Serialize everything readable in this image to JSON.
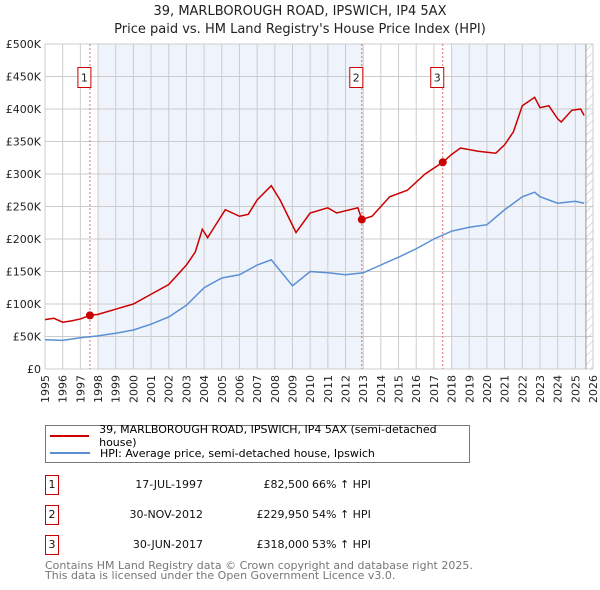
{
  "title_line1": "39, MARLBOROUGH ROAD, IPSWICH, IP4 5AX",
  "title_line2": "Price paid vs. HM Land Registry's House Price Index (HPI)",
  "chart_data": {
    "type": "line",
    "title": "39, MARLBOROUGH ROAD, IPSWICH, IP4 5AX — Price paid vs. HM Land Registry's House Price Index (HPI)",
    "xlim": [
      1995,
      2026
    ],
    "ylim": [
      0,
      500000
    ],
    "x_ticks": [
      "1995",
      "1996",
      "1997",
      "1998",
      "1999",
      "2000",
      "2001",
      "2002",
      "2003",
      "2004",
      "2005",
      "2006",
      "2007",
      "2008",
      "2009",
      "2010",
      "2011",
      "2012",
      "2013",
      "2014",
      "2015",
      "2016",
      "2017",
      "2018",
      "2019",
      "2020",
      "2021",
      "2022",
      "2023",
      "2024",
      "2025",
      "2026"
    ],
    "y_ticks": [
      {
        "v": 0,
        "label": "£0"
      },
      {
        "v": 50000,
        "label": "£50K"
      },
      {
        "v": 100000,
        "label": "£100K"
      },
      {
        "v": 150000,
        "label": "£150K"
      },
      {
        "v": 200000,
        "label": "£200K"
      },
      {
        "v": 250000,
        "label": "£250K"
      },
      {
        "v": 300000,
        "label": "£300K"
      },
      {
        "v": 350000,
        "label": "£350K"
      },
      {
        "v": 400000,
        "label": "£400K"
      },
      {
        "v": 450000,
        "label": "£450K"
      },
      {
        "v": 500000,
        "label": "£500K"
      }
    ],
    "grid": true,
    "legend_placement": "below",
    "series": [
      {
        "name": "39, MARLBOROUGH ROAD, IPSWICH, IP4 5AX (semi-detached house)",
        "color": "#cc0000",
        "x": [
          1995,
          1995.5,
          1996,
          1996.5,
          1997,
          1997.54,
          1998,
          1999,
          2000,
          2001,
          2002,
          2003,
          2003.5,
          2003.9,
          2004.2,
          2004.5,
          2005.2,
          2006,
          2006.5,
          2007,
          2007.8,
          2008.3,
          2009.2,
          2010,
          2011,
          2011.5,
          2012.7,
          2012.92,
          2013.5,
          2014,
          2014.5,
          2015.5,
          2016.5,
          2017.5,
          2018,
          2018.5,
          2019.5,
          2020.5,
          2021,
          2021.5,
          2022,
          2022.7,
          2023,
          2023.5,
          2024,
          2024.2,
          2024.8,
          2025.3,
          2025.5
        ],
        "y": [
          76000,
          78000,
          72000,
          74000,
          77000,
          82500,
          84000,
          92000,
          100000,
          115000,
          130000,
          160000,
          180000,
          215000,
          202000,
          215000,
          245000,
          235000,
          238000,
          260000,
          282000,
          260000,
          210000,
          240000,
          248000,
          240000,
          248000,
          229950,
          235000,
          250000,
          265000,
          275000,
          300000,
          318000,
          330000,
          340000,
          335000,
          332000,
          345000,
          365000,
          405000,
          418000,
          402000,
          405000,
          385000,
          380000,
          398000,
          400000,
          390000
        ]
      },
      {
        "name": "HPI: Average price, semi-detached house, Ipswich",
        "color": "#5b8fd4",
        "x": [
          1995,
          1996,
          1997,
          1998,
          1999,
          2000,
          2001,
          2002,
          2003,
          2004,
          2005,
          2006,
          2007,
          2007.8,
          2009,
          2010,
          2011,
          2012,
          2013,
          2014,
          2015,
          2016,
          2017,
          2018,
          2019,
          2020,
          2021,
          2022,
          2022.7,
          2023,
          2024,
          2025,
          2025.5
        ],
        "y": [
          45000,
          44000,
          48000,
          51000,
          55000,
          60000,
          69000,
          80000,
          98000,
          125000,
          140000,
          145000,
          160000,
          168000,
          128000,
          150000,
          148000,
          145000,
          148000,
          160000,
          172000,
          185000,
          200000,
          212000,
          218000,
          222000,
          245000,
          265000,
          272000,
          265000,
          255000,
          258000,
          255000
        ]
      }
    ],
    "sales": [
      {
        "label": "1",
        "x": 1997.54,
        "y": 82500
      },
      {
        "label": "2",
        "x": 2012.92,
        "y": 229950
      },
      {
        "label": "3",
        "x": 2017.5,
        "y": 318000
      }
    ]
  },
  "legend": [
    {
      "label": "39, MARLBOROUGH ROAD, IPSWICH, IP4 5AX (semi-detached house)",
      "color": "#cc0000"
    },
    {
      "label": "HPI: Average price, semi-detached house, Ipswich",
      "color": "#5b8fd4"
    }
  ],
  "transactions": [
    {
      "num": "1",
      "date": "17-JUL-1997",
      "price": "£82,500",
      "hpi": "66% ↑ HPI"
    },
    {
      "num": "2",
      "date": "30-NOV-2012",
      "price": "£229,950",
      "hpi": "54% ↑ HPI"
    },
    {
      "num": "3",
      "date": "30-JUN-2017",
      "price": "£318,000",
      "hpi": "53% ↑ HPI"
    }
  ],
  "footer_line1": "Contains HM Land Registry data © Crown copyright and database right 2025.",
  "footer_line2": "This data is licensed under the Open Government Licence v3.0."
}
